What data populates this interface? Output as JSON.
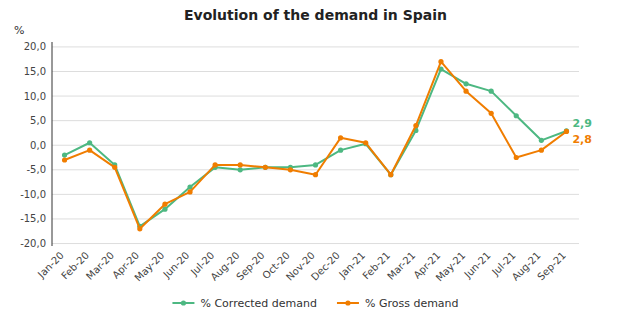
{
  "chart_data": {
    "type": "line",
    "title": "Evolution of the demand in Spain",
    "ylabel": "%",
    "categories": [
      "Jan-20",
      "Feb-20",
      "Mar-20",
      "Apr-20",
      "May-20",
      "Jun-20",
      "Jul-20",
      "Aug-20",
      "Sep-20",
      "Oct-20",
      "Nov-20",
      "Dec-20",
      "Jan-21",
      "Feb-21",
      "Mar-21",
      "Apr-21",
      "May-21",
      "Jun-21",
      "Jul-21",
      "Aug-21",
      "Sep-21"
    ],
    "series": [
      {
        "name": "% Corrected demand",
        "color": "#4db882",
        "marker": "circle",
        "values": [
          -2.0,
          0.5,
          -4.0,
          -16.5,
          -13.0,
          -8.5,
          -4.5,
          -5.0,
          -4.5,
          -4.5,
          -4.0,
          -1.0,
          0.3,
          -6.0,
          3.0,
          15.5,
          12.5,
          11.0,
          6.0,
          1.0,
          2.9
        ]
      },
      {
        "name": "% Gross demand",
        "color": "#f07d00",
        "marker": "circle",
        "values": [
          -3.0,
          -1.0,
          -4.5,
          -17.0,
          -12.0,
          -9.5,
          -4.0,
          -4.0,
          -4.5,
          -5.0,
          -6.0,
          1.5,
          0.5,
          -6.0,
          4.0,
          17.0,
          11.0,
          6.5,
          -2.5,
          -1.0,
          2.8
        ]
      }
    ],
    "ylim": [
      -20.5,
      21
    ],
    "yticks": [
      {
        "value": -20,
        "label": "-20,0"
      },
      {
        "value": -15,
        "label": "-15,0"
      },
      {
        "value": -10,
        "label": "-10,0"
      },
      {
        "value": -5,
        "label": "-5,0"
      },
      {
        "value": 0,
        "label": "0,0"
      },
      {
        "value": 5,
        "label": "5,0"
      },
      {
        "value": 10,
        "label": "10,0"
      },
      {
        "value": 15,
        "label": "15,0"
      },
      {
        "value": 20,
        "label": "20,0"
      }
    ],
    "annotations": [
      {
        "text": "2,9",
        "x": "Sep-21",
        "y": 2.9,
        "color": "#4db882"
      },
      {
        "text": "2,8",
        "x": "Sep-21",
        "y": 2.8,
        "color": "#f07d00"
      }
    ],
    "grid": true,
    "legend": "bottom"
  }
}
